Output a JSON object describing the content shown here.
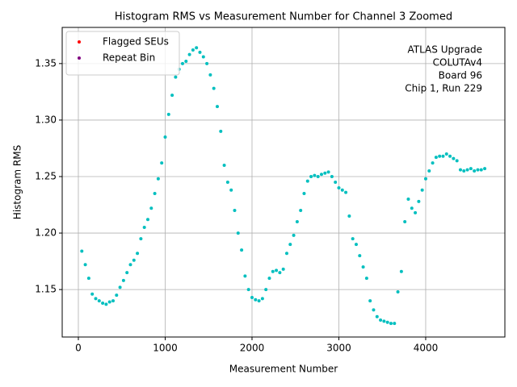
{
  "chart_data": {
    "type": "scatter",
    "title": "Histogram RMS vs Measurement Number for Channel 3 Zoomed",
    "xlabel": "Measurement Number",
    "ylabel": "Histogram RMS",
    "annotation": [
      "ATLAS Upgrade",
      "COLUTAv4",
      "Board 96",
      "Chip 1, Run 229"
    ],
    "xlim": [
      -186,
      4912
    ],
    "ylim": [
      1.108,
      1.382
    ],
    "xticks": [
      0,
      1000,
      2000,
      3000,
      4000
    ],
    "yticks": [
      1.15,
      {
        "value": 1.2,
        "label": "1.20"
      },
      1.25,
      {
        "value": 1.3,
        "label": "1.30"
      },
      1.35
    ],
    "grid": true,
    "legend": "upper left",
    "series": [
      {
        "color": "#00bfbf",
        "x": [
          40,
          80,
          120,
          160,
          200,
          240,
          280,
          320,
          360,
          400,
          440,
          480,
          520,
          560,
          600,
          640,
          680,
          720,
          760,
          800,
          840,
          880,
          920,
          960,
          1000,
          1040,
          1080,
          1120,
          1160,
          1200,
          1240,
          1280,
          1320,
          1360,
          1400,
          1440,
          1480,
          1520,
          1560,
          1600,
          1640,
          1680,
          1720,
          1760,
          1800,
          1840,
          1880,
          1920,
          1960,
          2000,
          2040,
          2080,
          2120,
          2160,
          2200,
          2240,
          2280,
          2320,
          2360,
          2400,
          2440,
          2480,
          2520,
          2560,
          2600,
          2640,
          2680,
          2720,
          2760,
          2800,
          2840,
          2880,
          2920,
          2960,
          3000,
          3040,
          3080,
          3120,
          3160,
          3200,
          3240,
          3280,
          3320,
          3360,
          3400,
          3440,
          3480,
          3520,
          3560,
          3600,
          3640,
          3680,
          3720,
          3760,
          3800,
          3840,
          3880,
          3920,
          3960,
          4000,
          4040,
          4080,
          4120,
          4160,
          4200,
          4240,
          4280,
          4320,
          4360,
          4400,
          4440,
          4480,
          4520,
          4560,
          4600,
          4640,
          4680
        ],
        "values": [
          1.184,
          1.172,
          1.16,
          1.146,
          1.142,
          1.14,
          1.138,
          1.137,
          1.139,
          1.14,
          1.145,
          1.152,
          1.158,
          1.165,
          1.172,
          1.176,
          1.182,
          1.195,
          1.205,
          1.212,
          1.222,
          1.235,
          1.248,
          1.262,
          1.285,
          1.305,
          1.322,
          1.338,
          1.345,
          1.35,
          1.352,
          1.358,
          1.362,
          1.364,
          1.36,
          1.356,
          1.35,
          1.34,
          1.328,
          1.312,
          1.29,
          1.26,
          1.245,
          1.238,
          1.22,
          1.2,
          1.185,
          1.162,
          1.15,
          1.143,
          1.141,
          1.14,
          1.142,
          1.15,
          1.16,
          1.166,
          1.167,
          1.165,
          1.168,
          1.182,
          1.19,
          1.198,
          1.21,
          1.22,
          1.235,
          1.246,
          1.25,
          1.251,
          1.25,
          1.252,
          1.253,
          1.254,
          1.25,
          1.245,
          1.24,
          1.238,
          1.236,
          1.215,
          1.195,
          1.19,
          1.18,
          1.17,
          1.16,
          1.14,
          1.132,
          1.126,
          1.123,
          1.122,
          1.121,
          1.12,
          1.12,
          1.148,
          1.166,
          1.21,
          1.23,
          1.222,
          1.218,
          1.228,
          1.238,
          1.248,
          1.255,
          1.262,
          1.267,
          1.268,
          1.268,
          1.27,
          1.268,
          1.266,
          1.264,
          1.256,
          1.255,
          1.256,
          1.257,
          1.255,
          1.256,
          1.256,
          1.257
        ]
      },
      {
        "name": "Flagged SEUs",
        "color": "red",
        "x": [],
        "values": []
      },
      {
        "name": "Repeat Bin",
        "color": "purple",
        "x": [],
        "values": []
      }
    ]
  }
}
